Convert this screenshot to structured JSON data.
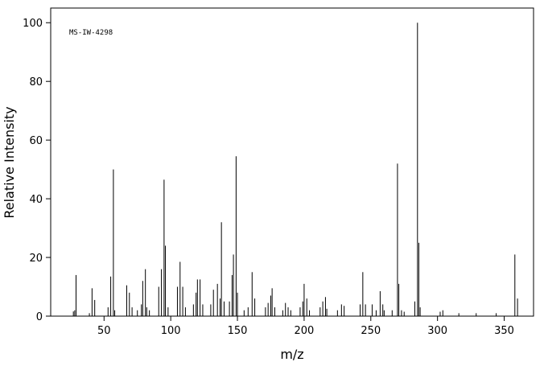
{
  "chart_data": {
    "type": "stem",
    "annotation": "MS-IW-4298",
    "x_label": "m/z",
    "y_label": "Relative Intensity",
    "color": "#000000",
    "xlim": [
      10,
      372
    ],
    "ylim": [
      0,
      105
    ],
    "xticks": [
      50,
      100,
      150,
      200,
      250,
      300,
      350
    ],
    "yticks": [
      0,
      20,
      40,
      60,
      80,
      100
    ],
    "x": [
      27,
      28,
      29,
      39,
      41,
      43,
      53,
      55,
      57,
      58,
      67,
      69,
      71,
      75,
      78,
      79,
      81,
      82,
      84,
      91,
      93,
      95,
      96,
      98,
      105,
      107,
      109,
      111,
      117,
      119,
      120,
      122,
      124,
      130,
      132,
      135,
      137,
      138,
      140,
      144,
      146,
      147,
      149,
      150,
      155,
      158,
      161,
      163,
      171,
      173,
      175,
      176,
      178,
      184,
      186,
      188,
      190,
      197,
      199,
      200,
      202,
      204,
      212,
      214,
      216,
      217,
      225,
      228,
      230,
      242,
      244,
      246,
      251,
      254,
      257,
      259,
      260,
      266,
      270,
      271,
      273,
      275,
      283,
      285,
      286,
      287,
      302,
      304,
      316,
      329,
      344,
      358,
      360
    ],
    "values": [
      1.6,
      2,
      14,
      1,
      9.5,
      5.5,
      3,
      13.5,
      50,
      2,
      10.5,
      8,
      3,
      2,
      4,
      12,
      16,
      3,
      2,
      10,
      16,
      46.5,
      24,
      3,
      10,
      18.5,
      10,
      3,
      4,
      8,
      12.5,
      12.5,
      4,
      4,
      9,
      11,
      6,
      32,
      5,
      5,
      14,
      21,
      54.5,
      8,
      2,
      3,
      15,
      6,
      3,
      4.5,
      7,
      9.5,
      3,
      2,
      4.5,
      3,
      2,
      3,
      5,
      11,
      6,
      2,
      3,
      5,
      6.5,
      2.5,
      2,
      4,
      3.5,
      4,
      15,
      4,
      4,
      2,
      8.5,
      4,
      2,
      2,
      52,
      11,
      2,
      1.5,
      5,
      100,
      25,
      3,
      1.5,
      2,
      1,
      1,
      1,
      21,
      6
    ]
  }
}
